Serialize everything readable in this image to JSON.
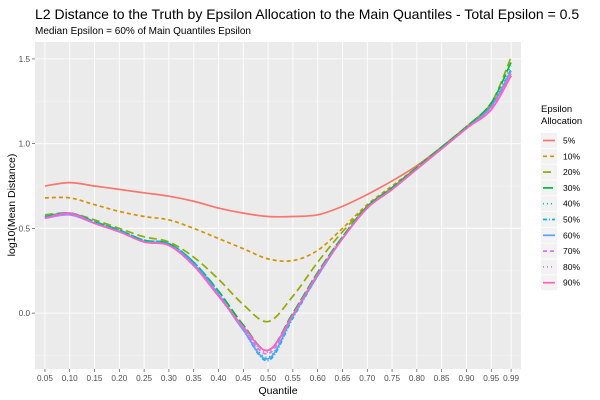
{
  "chart_data": {
    "type": "line",
    "title": "L2 Distance to the Truth by Epsilon Allocation to the Main Quantiles - Total Epsilon = 0.5",
    "subtitle": "Median Epsilon = 60% of Main Quantiles Epsilon",
    "xlabel": "Quantile",
    "ylabel": "log10(Mean Distance)",
    "x_ticks": [
      0.05,
      0.1,
      0.15,
      0.2,
      0.25,
      0.3,
      0.35,
      0.4,
      0.45,
      0.5,
      0.55,
      0.6,
      0.65,
      0.7,
      0.75,
      0.8,
      0.85,
      0.9,
      0.95,
      0.99
    ],
    "x_tick_labels": [
      "0.05",
      "0.10",
      "0.15",
      "0.20",
      "0.25",
      "0.30",
      "0.35",
      "0.40",
      "0.45",
      "0.50",
      "0.55",
      "0.60",
      "0.65",
      "0.70",
      "0.75",
      "0.80",
      "0.85",
      "0.90",
      "0.95",
      "0.99"
    ],
    "y_ticks": [
      0.0,
      0.5,
      1.0,
      1.5
    ],
    "y_tick_labels": [
      "0.0",
      "0.5",
      "1.0",
      "1.5"
    ],
    "xlim": [
      0.03,
      1.01
    ],
    "ylim": [
      -0.33,
      1.6
    ],
    "grid": true,
    "background": "#ebebeb",
    "legend": {
      "title_line1": "Epsilon",
      "title_line2": "Allocation",
      "placement": "right"
    },
    "x": [
      0.05,
      0.1,
      0.15,
      0.2,
      0.25,
      0.3,
      0.35,
      0.4,
      0.45,
      0.5,
      0.55,
      0.6,
      0.65,
      0.7,
      0.75,
      0.8,
      0.85,
      0.9,
      0.95,
      0.99
    ],
    "series": [
      {
        "name": "5%",
        "color": "#F8766D",
        "dash": "solid",
        "values": [
          0.75,
          0.77,
          0.75,
          0.73,
          0.71,
          0.69,
          0.66,
          0.62,
          0.59,
          0.57,
          0.57,
          0.58,
          0.63,
          0.7,
          0.78,
          0.87,
          0.98,
          1.1,
          1.23,
          1.4
        ]
      },
      {
        "name": "10%",
        "color": "#D39200",
        "dash": "4,3",
        "values": [
          0.68,
          0.68,
          0.64,
          0.6,
          0.57,
          0.55,
          0.5,
          0.44,
          0.38,
          0.32,
          0.31,
          0.37,
          0.5,
          0.64,
          0.75,
          0.86,
          0.98,
          1.1,
          1.23,
          1.41
        ]
      },
      {
        "name": "20%",
        "color": "#93AA00",
        "dash": "8,4",
        "values": [
          0.58,
          0.59,
          0.55,
          0.5,
          0.45,
          0.42,
          0.33,
          0.2,
          0.05,
          -0.05,
          0.1,
          0.3,
          0.48,
          0.63,
          0.74,
          0.86,
          0.98,
          1.1,
          1.24,
          1.51
        ]
      },
      {
        "name": "30%",
        "color": "#00BA38",
        "dash": "10,3",
        "values": [
          0.57,
          0.59,
          0.54,
          0.49,
          0.43,
          0.41,
          0.3,
          0.13,
          -0.07,
          -0.22,
          0.0,
          0.24,
          0.45,
          0.63,
          0.74,
          0.86,
          0.98,
          1.1,
          1.24,
          1.48
        ]
      },
      {
        "name": "40%",
        "color": "#00C19F",
        "dash": "1,3",
        "values": [
          0.57,
          0.59,
          0.54,
          0.49,
          0.43,
          0.41,
          0.3,
          0.12,
          -0.09,
          -0.26,
          -0.02,
          0.23,
          0.45,
          0.63,
          0.74,
          0.86,
          0.98,
          1.1,
          1.23,
          1.46
        ]
      },
      {
        "name": "50%",
        "color": "#00B9E3",
        "dash": "4,2,1,2",
        "values": [
          0.57,
          0.59,
          0.54,
          0.49,
          0.43,
          0.41,
          0.3,
          0.12,
          -0.1,
          -0.28,
          -0.03,
          0.22,
          0.44,
          0.62,
          0.73,
          0.85,
          0.97,
          1.09,
          1.22,
          1.44
        ]
      },
      {
        "name": "60%",
        "color": "#619CFF",
        "dash": "solid",
        "values": [
          0.56,
          0.58,
          0.53,
          0.48,
          0.42,
          0.4,
          0.29,
          0.11,
          -0.1,
          -0.27,
          -0.02,
          0.22,
          0.44,
          0.62,
          0.73,
          0.85,
          0.97,
          1.09,
          1.22,
          1.43
        ]
      },
      {
        "name": "70%",
        "color": "#DB72FB",
        "dash": "4,3",
        "values": [
          0.56,
          0.58,
          0.53,
          0.48,
          0.42,
          0.4,
          0.28,
          0.11,
          -0.09,
          -0.24,
          -0.01,
          0.23,
          0.44,
          0.62,
          0.73,
          0.85,
          0.97,
          1.09,
          1.21,
          1.42
        ]
      },
      {
        "name": "80%",
        "color": "#D973F6",
        "dash": "1,3",
        "values": [
          0.56,
          0.58,
          0.53,
          0.48,
          0.42,
          0.4,
          0.28,
          0.1,
          -0.09,
          -0.23,
          -0.01,
          0.23,
          0.44,
          0.62,
          0.73,
          0.85,
          0.97,
          1.09,
          1.21,
          1.41
        ]
      },
      {
        "name": "90%",
        "color": "#FF61C3",
        "dash": "solid",
        "values": [
          0.56,
          0.59,
          0.53,
          0.48,
          0.42,
          0.4,
          0.28,
          0.1,
          -0.08,
          -0.22,
          -0.01,
          0.23,
          0.44,
          0.62,
          0.73,
          0.85,
          0.97,
          1.09,
          1.2,
          1.4
        ]
      }
    ]
  }
}
